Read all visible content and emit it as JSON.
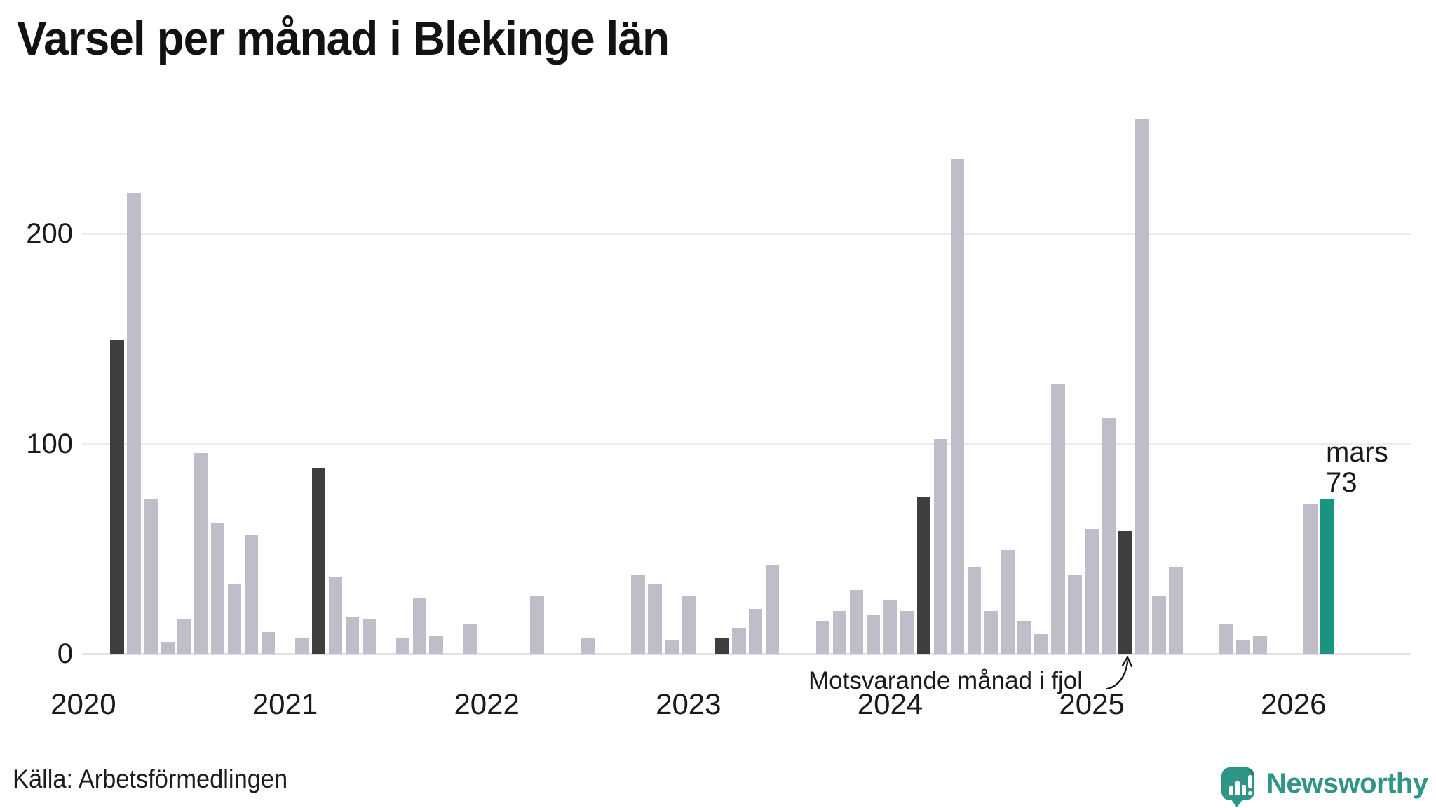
{
  "title": "Varsel per månad i Blekinge län",
  "source": "Källa: Arbetsförmedlingen",
  "logo": {
    "text": "Newsworthy"
  },
  "colors": {
    "bar_default": "#bfbdca",
    "bar_highlight_dark": "#3f3d3e",
    "bar_current_teal": "#189481",
    "brand_teal": "#2f9587",
    "gridline": "#ececf0",
    "axis_zero_line": "#e2e2e8",
    "text": "#1a1a1a"
  },
  "chart_data": {
    "type": "bar",
    "title": "Varsel per månad i Blekinge län",
    "xlabel": "",
    "ylabel": "",
    "x_start": "januari 2020",
    "x_end": "mars 2026",
    "values": [
      0,
      0,
      149,
      219,
      73,
      5,
      16,
      95,
      62,
      33,
      56,
      10,
      0,
      7,
      88,
      36,
      17,
      16,
      0,
      7,
      26,
      8,
      0,
      14,
      0,
      0,
      0,
      27,
      0,
      0,
      7,
      0,
      0,
      37,
      33,
      6,
      27,
      0,
      7,
      12,
      21,
      42,
      0,
      0,
      15,
      20,
      30,
      18,
      25,
      20,
      74,
      102,
      235,
      41,
      20,
      49,
      15,
      9,
      128,
      37,
      59,
      112,
      58,
      254,
      27,
      41,
      0,
      0,
      14,
      6,
      8,
      0,
      0,
      71,
      73
    ],
    "dark_month_indices": [
      2,
      14,
      26,
      38,
      50,
      62
    ],
    "current_index": 74,
    "annotation": "Motsvarande månad i fjol",
    "annotation_points_to_index": 62,
    "peak_label": {
      "month": "mars",
      "value": "73"
    },
    "x_year_labels": [
      {
        "label": "2020",
        "month_index": 0
      },
      {
        "label": "2021",
        "month_index": 12
      },
      {
        "label": "2022",
        "month_index": 24
      },
      {
        "label": "2023",
        "month_index": 36
      },
      {
        "label": "2024",
        "month_index": 48
      },
      {
        "label": "2025",
        "month_index": 60
      },
      {
        "label": "2026",
        "month_index": 72
      }
    ],
    "yticks": [
      {
        "value": 0,
        "label": "0"
      },
      {
        "value": 100,
        "label": "100"
      },
      {
        "value": 200,
        "label": "200"
      }
    ],
    "ylim": [
      0,
      265
    ],
    "grid": "horizontal",
    "legend": "none"
  }
}
